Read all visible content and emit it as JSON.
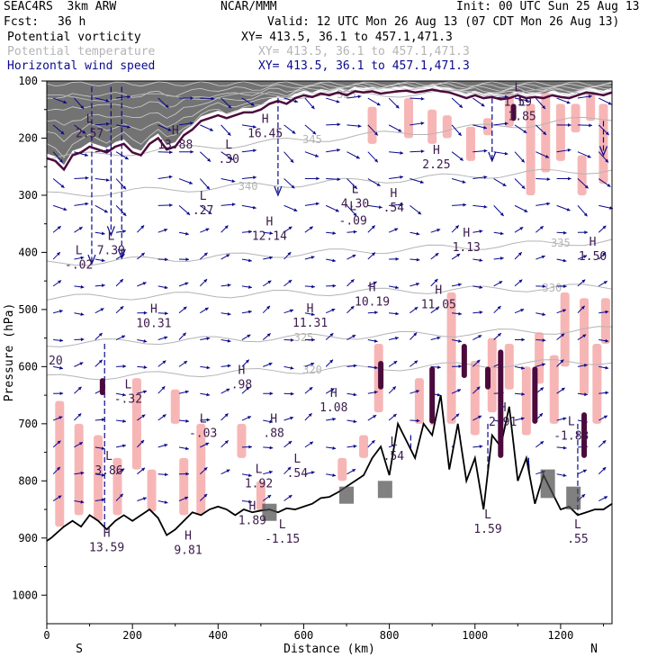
{
  "header": {
    "model": "SEAC4RS  3km ARW",
    "center": "NCAR/MMM",
    "init": "Init: 00 UTC Sun 25 Aug 13",
    "fcst_label": "Fcst:",
    "fcst_value": "36 h",
    "valid": "Valid: 12 UTC Mon 26 Aug 13 (07 CDT Mon 26 Aug 13)"
  },
  "legend": [
    {
      "field": "Potential vorticity",
      "xy": "XY= 413.5, 36.1 to 457.1,471.3",
      "color": "#000000"
    },
    {
      "field": "Potential temperature",
      "xy": "XY= 413.5, 36.1 to 457.1,471.3",
      "color": "#b4b4b4"
    },
    {
      "field": "Horizontal wind speed",
      "xy": "XY= 413.5, 36.1 to 457.1,471.3",
      "color": "#0a0a8c"
    }
  ],
  "chart_data": {
    "type": "cross-section",
    "title": "Potential vorticity / Potential temperature / Horizontal wind speed",
    "xlabel": "Distance (km)",
    "ylabel": "Pressure (hPa)",
    "xlim": [
      0,
      1320
    ],
    "ylim": [
      1050,
      100
    ],
    "x_ticks": [
      0,
      200,
      400,
      600,
      800,
      1000,
      1200
    ],
    "y_ticks": [
      100,
      200,
      300,
      400,
      500,
      600,
      700,
      800,
      900,
      1000
    ],
    "x_end_labels": {
      "left": "S",
      "right": "N"
    },
    "terrain": {
      "x": [
        0,
        10,
        25,
        40,
        60,
        80,
        100,
        120,
        140,
        160,
        180,
        200,
        220,
        240,
        260,
        280,
        290,
        300,
        320,
        340,
        360,
        380,
        400,
        420,
        440,
        460,
        480,
        500,
        520,
        540,
        560,
        580,
        600,
        620,
        640,
        660,
        680,
        700,
        720,
        740,
        760,
        780,
        800,
        820,
        840,
        860,
        880,
        900,
        920,
        940,
        960,
        980,
        1000,
        1020,
        1040,
        1060,
        1080,
        1100,
        1120,
        1140,
        1160,
        1180,
        1200,
        1220,
        1240,
        1260,
        1280,
        1300,
        1320
      ],
      "p": [
        905,
        900,
        890,
        880,
        870,
        880,
        860,
        870,
        885,
        870,
        860,
        870,
        860,
        850,
        865,
        895,
        890,
        885,
        870,
        855,
        860,
        850,
        845,
        850,
        860,
        850,
        855,
        852,
        850,
        855,
        848,
        850,
        845,
        840,
        830,
        828,
        820,
        810,
        800,
        790,
        760,
        740,
        790,
        700,
        730,
        760,
        700,
        720,
        650,
        780,
        700,
        800,
        760,
        850,
        720,
        740,
        670,
        800,
        760,
        840,
        790,
        820,
        850,
        845,
        860,
        855,
        850,
        850,
        840
      ]
    },
    "theta_contours": [
      {
        "label": "345",
        "p_left": 235,
        "p_right": 165,
        "label_x": 620
      },
      {
        "label": "340",
        "p_left": 300,
        "p_right": 255,
        "label_x": 470
      },
      {
        "label": "335",
        "p_left": 420,
        "p_right": 380,
        "label_x": 1200
      },
      {
        "label": "330",
        "p_left": 480,
        "p_right": 460,
        "label_x": 1180
      },
      {
        "label": "325",
        "p_left": 560,
        "p_right": 535,
        "label_x": 600
      },
      {
        "label": "320",
        "p_left": 620,
        "p_right": 590,
        "label_x": 620
      },
      {
        "label": "355",
        "p_left": 130,
        "p_right": 118,
        "label_x": 700
      }
    ],
    "pv_tropopause": {
      "x": [
        0,
        20,
        40,
        60,
        80,
        100,
        120,
        140,
        160,
        180,
        200,
        220,
        240,
        260,
        280,
        300,
        320,
        340,
        360,
        380,
        400,
        420,
        440,
        460,
        480,
        500,
        520,
        540,
        560,
        580,
        600,
        620,
        640,
        660,
        680,
        700,
        720,
        740,
        760,
        780,
        800,
        820,
        840,
        860,
        880,
        900,
        920,
        940,
        960,
        980,
        1000,
        1020,
        1040,
        1060,
        1080,
        1100,
        1120,
        1140,
        1160,
        1180,
        1200,
        1220,
        1240,
        1260,
        1280,
        1300,
        1320
      ],
      "p": [
        235,
        240,
        255,
        230,
        225,
        215,
        220,
        225,
        215,
        210,
        225,
        230,
        210,
        200,
        220,
        215,
        195,
        185,
        170,
        165,
        160,
        165,
        160,
        155,
        155,
        150,
        140,
        135,
        140,
        130,
        125,
        128,
        122,
        125,
        120,
        125,
        118,
        120,
        118,
        122,
        120,
        118,
        117,
        120,
        118,
        115,
        118,
        120,
        125,
        130,
        125,
        130,
        128,
        132,
        130,
        125,
        130,
        128,
        130,
        125,
        128,
        130,
        125,
        120,
        122,
        125,
        120
      ]
    },
    "extrema": [
      {
        "type": "L",
        "value": "2.57",
        "x": 100,
        "p": 195
      },
      {
        "type": "H",
        "value": "13.88",
        "x": 300,
        "p": 215
      },
      {
        "type": "L",
        "value": ".30",
        "x": 425,
        "p": 240
      },
      {
        "type": "H",
        "value": "16.45",
        "x": 510,
        "p": 195
      },
      {
        "type": "L",
        "value": ".27",
        "x": 365,
        "p": 330
      },
      {
        "type": "L",
        "value": "4.30",
        "x": 720,
        "p": 318
      },
      {
        "type": "L",
        "value": "-.09",
        "x": 715,
        "p": 348
      },
      {
        "type": "H",
        "value": ".54",
        "x": 810,
        "p": 325
      },
      {
        "type": "H",
        "value": "2.25",
        "x": 910,
        "p": 250
      },
      {
        "type": "H",
        "value": "12.14",
        "x": 520,
        "p": 375
      },
      {
        "type": "L",
        "value": "7.39",
        "x": 150,
        "p": 400
      },
      {
        "type": "L",
        "value": "-.02",
        "x": 75,
        "p": 425
      },
      {
        "type": "H",
        "value": "1.13",
        "x": 980,
        "p": 395
      },
      {
        "type": "H",
        "value": "1.50",
        "x": 1275,
        "p": 410
      },
      {
        "type": "H",
        "value": "10.19",
        "x": 760,
        "p": 490
      },
      {
        "type": "H",
        "value": "11.05",
        "x": 915,
        "p": 495
      },
      {
        "type": "H",
        "value": "10.31",
        "x": 250,
        "p": 528
      },
      {
        "type": "H",
        "value": "11.31",
        "x": 615,
        "p": 527
      },
      {
        "type": "H",
        "value": ".98",
        "x": 455,
        "p": 635
      },
      {
        "type": "L",
        "value": "-.32",
        "x": 190,
        "p": 660
      },
      {
        "type": "H",
        "value": "1.08",
        "x": 670,
        "p": 675
      },
      {
        "type": "L",
        "value": "-.03",
        "x": 365,
        "p": 720
      },
      {
        "type": "H",
        "value": ".88",
        "x": 530,
        "p": 720
      },
      {
        "type": "L",
        "value": "3.86",
        "x": 145,
        "p": 785
      },
      {
        "type": "L",
        "value": "1.92",
        "x": 495,
        "p": 808
      },
      {
        "type": "L",
        "value": ".54",
        "x": 585,
        "p": 790
      },
      {
        "type": "L",
        "value": ".54",
        "x": 810,
        "p": 760
      },
      {
        "type": "H",
        "value": "2.91",
        "x": 1065,
        "p": 700
      },
      {
        "type": "L",
        "value": "-1.83",
        "x": 1225,
        "p": 725
      },
      {
        "type": "L",
        "value": "1.59",
        "x": 1100,
        "p": 140
      },
      {
        "type": "L",
        "value": "1.85",
        "x": 1110,
        "p": 165
      },
      {
        "type": "H",
        "value": "1.89",
        "x": 480,
        "p": 873
      },
      {
        "type": "L",
        "value": "-1.15",
        "x": 550,
        "p": 905
      },
      {
        "type": "H",
        "value": "9.81",
        "x": 330,
        "p": 925
      },
      {
        "type": "L",
        "value": "1.59",
        "x": 1030,
        "p": 888
      },
      {
        "type": "H",
        "value": "13.59",
        "x": 140,
        "p": 920
      },
      {
        "type": "L",
        "value": ".55",
        "x": 1240,
        "p": 905
      }
    ],
    "left_label": {
      "value": "20",
      "p": 590
    }
  }
}
